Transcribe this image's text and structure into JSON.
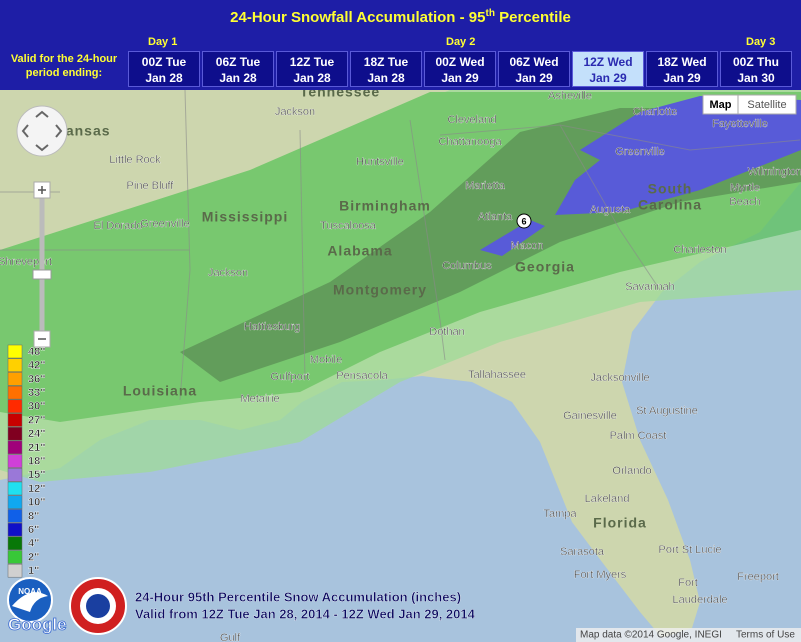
{
  "header": {
    "title": {
      "main": "24-Hour Snowfall Accumulation - 95",
      "sup": "th",
      "end": " Percentile"
    }
  },
  "time_bar": {
    "label": "Valid for the 24-hour period ending:",
    "days": [
      "Day 1",
      "Day 2",
      "Day 3"
    ],
    "periods": [
      {
        "time": "00Z Tue",
        "date": "Jan 28"
      },
      {
        "time": "06Z Tue",
        "date": "Jan 28"
      },
      {
        "time": "12Z Tue",
        "date": "Jan 28"
      },
      {
        "time": "18Z Tue",
        "date": "Jan 28"
      },
      {
        "time": "00Z Wed",
        "date": "Jan 29"
      },
      {
        "time": "06Z Wed",
        "date": "Jan 29"
      },
      {
        "time": "12Z Wed",
        "date": "Jan 29"
      },
      {
        "time": "18Z Wed",
        "date": "Jan 29"
      },
      {
        "time": "00Z Thu",
        "date": "Jan 30"
      }
    ],
    "selected": 6
  },
  "map": {
    "map_types": [
      "Map",
      "Satellite"
    ],
    "contour_label": "6",
    "places": [
      "Tennessee",
      "Jackson",
      "Asheville",
      "Charlotte",
      "Fayetteville",
      "Arkansas",
      "Cleveland",
      "Chattanooga",
      "Little Rock",
      "Huntsville",
      "Greenville",
      "Pine Bluff",
      "Marietta",
      "Birmingham",
      "Atlanta",
      "South",
      "Carolina",
      "Augusta",
      "El Dorado",
      "Greenville",
      "Mississippi",
      "Tuscaloosa",
      "Myrtle",
      "Beach",
      "Wilmington",
      "Macon",
      "Shreveport",
      "Alabama",
      "Charleston",
      "Jackson",
      "Columbus",
      "Georgia",
      "Montgomery",
      "Savannah",
      "Hattiesburg",
      "Dothan",
      "Mobile",
      "Gulfport",
      "Pensacola",
      "Tallahassee",
      "Jacksonville",
      "Louisiana",
      "Metairie",
      "Gainesville",
      "St Augustine",
      "Palm Coast",
      "Orlando",
      "Lakeland",
      "Tampa",
      "Florida",
      "Sarasota",
      "Port St Lucie",
      "Fort Myers",
      "Fort",
      "Lauderdale",
      "Freeport",
      "Gulf"
    ]
  },
  "legend": {
    "items": [
      {
        "label": "48\"",
        "color": "#ffff00"
      },
      {
        "label": "42\"",
        "color": "#ffd000"
      },
      {
        "label": "36\"",
        "color": "#ffa000"
      },
      {
        "label": "33\"",
        "color": "#ff7000"
      },
      {
        "label": "30\"",
        "color": "#ff2a00"
      },
      {
        "label": "27\"",
        "color": "#c80000"
      },
      {
        "label": "24\"",
        "color": "#800020"
      },
      {
        "label": "21\"",
        "color": "#a0007a"
      },
      {
        "label": "18\"",
        "color": "#d040d8"
      },
      {
        "label": "15\"",
        "color": "#9a78d8"
      },
      {
        "label": "12\"",
        "color": "#20e0f0"
      },
      {
        "label": "10\"",
        "color": "#10a8f0"
      },
      {
        "label": "8\"",
        "color": "#1060e8"
      },
      {
        "label": "6\"",
        "color": "#1010c8"
      },
      {
        "label": "4\"",
        "color": "#087808"
      },
      {
        "label": "2\"",
        "color": "#38c838"
      },
      {
        "label": "1\"",
        "color": "#d0d0d0"
      }
    ]
  },
  "caption": {
    "line1": "24-Hour 95th Percentile Snow Accumulation (inches)",
    "line2": "Valid from 12Z Tue Jan 28, 2014 - 12Z Wed Jan 29, 2014"
  },
  "logos": {
    "noaa": "NOAA",
    "google": "Google"
  },
  "footer": {
    "attribution": "Map data ©2014 Google, INEGI",
    "terms": "Terms of Use"
  }
}
